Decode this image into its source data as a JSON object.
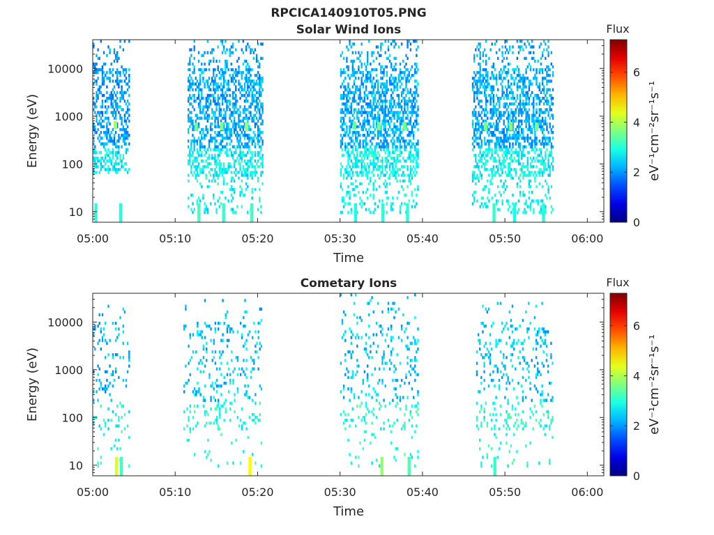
{
  "figure_title": "RPCICA140910T05.PNG",
  "chart_data": [
    {
      "type": "heatmap",
      "title": "Solar Wind Ions",
      "xlabel": "Time",
      "ylabel": "Energy (eV)",
      "x_tick_labels": [
        "05:00",
        "05:10",
        "05:20",
        "05:30",
        "05:40",
        "05:50",
        "06:00"
      ],
      "x_ticks_min": [
        0,
        10,
        20,
        30,
        40,
        50,
        60
      ],
      "xlim_min": [
        0,
        62
      ],
      "y_tick_labels": [
        "10",
        "100",
        "1000",
        "10000"
      ],
      "y_ticks": [
        10,
        100,
        1000,
        10000
      ],
      "ylim": [
        6,
        40000
      ],
      "y_scale": "log",
      "colorbar": {
        "title": "Flux",
        "label": "eV⁻¹cm⁻²sr⁻¹s⁻¹",
        "range": [
          0,
          7.3
        ],
        "ticks": [
          "0",
          "2",
          "4",
          "6"
        ],
        "colormap": "jet"
      },
      "bursts": [
        {
          "start_min": 0.0,
          "end_min": 4.5,
          "emin": 60,
          "emax": 35000,
          "dens": 0.45,
          "base": 1.6
        },
        {
          "start_min": 11.5,
          "end_min": 20.5,
          "emin": 8,
          "emax": 35000,
          "dens": 0.5,
          "base": 1.7
        },
        {
          "start_min": 30.0,
          "end_min": 39.5,
          "emin": 8,
          "emax": 35000,
          "dens": 0.5,
          "base": 1.7
        },
        {
          "start_min": 46.0,
          "end_min": 55.8,
          "emin": 8,
          "emax": 35000,
          "dens": 0.5,
          "base": 1.7
        }
      ],
      "hotspots": [
        {
          "t_min": 2.7,
          "e_ev": 650,
          "flux": 3.9
        },
        {
          "t_min": 12.5,
          "e_ev": 600,
          "flux": 3.5
        },
        {
          "t_min": 15.6,
          "e_ev": 620,
          "flux": 3.7
        },
        {
          "t_min": 18.6,
          "e_ev": 600,
          "flux": 3.9
        },
        {
          "t_min": 31.7,
          "e_ev": 630,
          "flux": 3.4
        },
        {
          "t_min": 34.7,
          "e_ev": 620,
          "flux": 3.6
        },
        {
          "t_min": 37.8,
          "e_ev": 620,
          "flux": 3.5
        },
        {
          "t_min": 47.6,
          "e_ev": 620,
          "flux": 3.6
        },
        {
          "t_min": 50.7,
          "e_ev": 620,
          "flux": 3.7
        },
        {
          "t_min": 53.8,
          "e_ev": 600,
          "flux": 3.6
        }
      ],
      "low_energy_columns": [
        {
          "t_min": 0.2,
          "flux": 3.0
        },
        {
          "t_min": 3.2,
          "flux": 3.0
        },
        {
          "t_min": 12.7,
          "flux": 3.2
        },
        {
          "t_min": 15.7,
          "flux": 3.1
        },
        {
          "t_min": 19.1,
          "flux": 3.2
        },
        {
          "t_min": 31.7,
          "flux": 2.9
        },
        {
          "t_min": 35.0,
          "flux": 3.0
        },
        {
          "t_min": 38.0,
          "flux": 3.0
        },
        {
          "t_min": 48.5,
          "flux": 3.1
        },
        {
          "t_min": 51.0,
          "flux": 2.9
        },
        {
          "t_min": 54.5,
          "flux": 3.0
        }
      ]
    },
    {
      "type": "heatmap",
      "title": "Cometary Ions",
      "xlabel": "Time",
      "ylabel": "Energy (eV)",
      "x_tick_labels": [
        "05:00",
        "05:10",
        "05:20",
        "05:30",
        "05:40",
        "05:50",
        "06:00"
      ],
      "x_ticks_min": [
        0,
        10,
        20,
        30,
        40,
        50,
        60
      ],
      "xlim_min": [
        0,
        62
      ],
      "y_tick_labels": [
        "10",
        "100",
        "1000",
        "10000"
      ],
      "y_ticks": [
        10,
        100,
        1000,
        10000
      ],
      "ylim": [
        6,
        40000
      ],
      "y_scale": "log",
      "colorbar": {
        "title": "Flux",
        "label": "eV⁻¹cm⁻²sr⁻¹s⁻¹",
        "range": [
          0,
          7.3
        ],
        "ticks": [
          "0",
          "2",
          "4",
          "6"
        ],
        "colormap": "jet"
      },
      "bursts": [
        {
          "start_min": 0.0,
          "end_min": 4.5,
          "emin": 8,
          "emax": 25000,
          "dens": 0.12,
          "base": 1.8
        },
        {
          "start_min": 11.0,
          "end_min": 20.5,
          "emin": 8,
          "emax": 30000,
          "dens": 0.14,
          "base": 1.9
        },
        {
          "start_min": 30.0,
          "end_min": 39.5,
          "emin": 8,
          "emax": 35000,
          "dens": 0.14,
          "base": 1.9
        },
        {
          "start_min": 46.5,
          "end_min": 55.8,
          "emin": 8,
          "emax": 25000,
          "dens": 0.14,
          "base": 1.9
        }
      ],
      "hotspots": [],
      "low_energy_columns": [
        {
          "t_min": 2.7,
          "flux": 4.3
        },
        {
          "t_min": 3.3,
          "flux": 3.2
        },
        {
          "t_min": 18.9,
          "flux": 4.6
        },
        {
          "t_min": 34.9,
          "flux": 3.8
        },
        {
          "t_min": 38.2,
          "flux": 3.3
        },
        {
          "t_min": 48.6,
          "flux": 3.1
        }
      ]
    }
  ]
}
